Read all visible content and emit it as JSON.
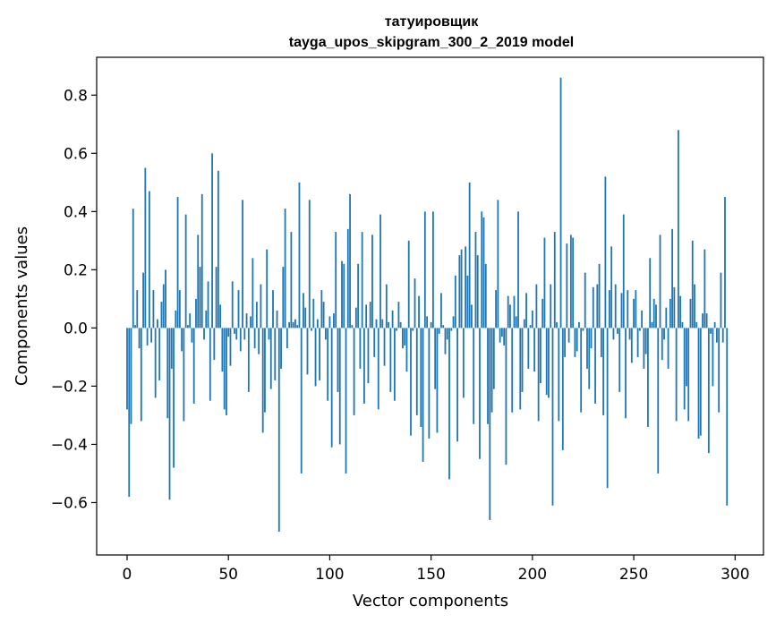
{
  "chart_data": {
    "type": "bar",
    "title": "татуировщик",
    "subtitle": "tayga_upos_skipgram_300_2_2019 model",
    "xlabel": "Vector components",
    "ylabel": "Components values",
    "xlim": [
      -15,
      314
    ],
    "ylim": [
      -0.78,
      0.93
    ],
    "xticks": [
      0,
      50,
      100,
      150,
      200,
      250,
      300
    ],
    "xtick_labels": [
      "0",
      "50",
      "100",
      "150",
      "200",
      "250",
      "300"
    ],
    "yticks": [
      -0.6,
      -0.4,
      -0.2,
      0.0,
      0.2,
      0.4,
      0.6,
      0.8
    ],
    "ytick_labels": [
      "−0.6",
      "−0.4",
      "−0.2",
      "0.0",
      "0.2",
      "0.4",
      "0.6",
      "0.8"
    ],
    "bar_color": "#1f77b4",
    "grid": false,
    "values": [
      -0.28,
      -0.58,
      -0.33,
      0.41,
      0.01,
      0.13,
      -0.07,
      -0.32,
      0.19,
      0.55,
      -0.06,
      0.47,
      -0.05,
      0.13,
      -0.24,
      0.03,
      -0.18,
      0.09,
      0.15,
      0.2,
      -0.31,
      -0.59,
      -0.14,
      -0.48,
      0.06,
      0.45,
      0.13,
      -0.08,
      -0.32,
      0.39,
      0.01,
      0.05,
      -0.05,
      -0.26,
      0.1,
      0.32,
      0.21,
      0.46,
      -0.04,
      0.06,
      0.16,
      -0.25,
      0.6,
      -0.11,
      0.21,
      0.54,
      0.08,
      -0.15,
      -0.28,
      -0.3,
      -0.03,
      -0.13,
      0.16,
      -0.02,
      -0.04,
      0.13,
      -0.08,
      0.44,
      -0.04,
      0.05,
      -0.22,
      0.04,
      0.24,
      -0.07,
      0.09,
      -0.09,
      0.15,
      -0.36,
      -0.29,
      0.27,
      -0.04,
      -0.21,
      0.13,
      -0.18,
      0.06,
      -0.7,
      -0.14,
      0.21,
      0.41,
      -0.07,
      0.02,
      0.33,
      0.02,
      0.03,
      0.01,
      0.5,
      -0.5,
      0.12,
      0.07,
      -0.16,
      0.44,
      -0.01,
      0.1,
      -0.2,
      0.03,
      -0.18,
      0.13,
      0.09,
      -0.04,
      -0.25,
      0.04,
      -0.41,
      0.05,
      0.33,
      -0.22,
      -0.4,
      0.23,
      0.22,
      -0.5,
      0.34,
      0.46,
      0.01,
      -0.3,
      0.07,
      0.22,
      -0.14,
      0.33,
      -0.26,
      0.08,
      -0.19,
      0.09,
      0.32,
      -0.1,
      0.03,
      -0.28,
      0.39,
      0.03,
      -0.13,
      0.15,
      0.02,
      -0.22,
      0.06,
      -0.25,
      -0.01,
      0.09,
      0.02,
      -0.07,
      -0.06,
      -0.15,
      0.3,
      -0.37,
      -0.01,
      0.17,
      -0.3,
      0.11,
      -0.34,
      -0.46,
      0.4,
      0.04,
      -0.38,
      0.02,
      0.4,
      -0.21,
      -0.36,
      -0.02,
      0.12,
      0.01,
      -0.09,
      -0.04,
      -0.52,
      -0.01,
      0.04,
      0.18,
      -0.39,
      0.25,
      0.27,
      -0.24,
      0.28,
      0.18,
      0.5,
      0.08,
      -0.33,
      0.33,
      0.25,
      -0.45,
      0.4,
      0.38,
      0.22,
      -0.33,
      -0.66,
      -0.29,
      -0.21,
      0.13,
      0.44,
      -0.05,
      -0.03,
      -0.06,
      -0.47,
      0.11,
      0.08,
      -0.29,
      0.11,
      0.04,
      0.4,
      -0.28,
      -0.22,
      0.03,
      0.12,
      -0.14,
      0.01,
      0.06,
      -0.15,
      0.15,
      -0.32,
      -0.19,
      0.1,
      0.31,
      -0.23,
      -0.24,
      0.15,
      -0.61,
      0.33,
      0.02,
      -0.32,
      0.86,
      -0.42,
      -0.1,
      0.29,
      -0.05,
      0.32,
      0.31,
      -0.1,
      -0.08,
      0.02,
      -0.29,
      -0.01,
      0.19,
      -0.14,
      -0.21,
      -0.07,
      0.14,
      -0.26,
      0.15,
      0.22,
      -0.1,
      -0.3,
      0.52,
      -0.55,
      0.13,
      0.28,
      -0.04,
      0.15,
      -0.02,
      -0.22,
      0.12,
      0.39,
      -0.31,
      0.13,
      -0.04,
      -0.12,
      0.1,
      0.13,
      -0.1,
      -0.01,
      0.06,
      -0.14,
      -0.09,
      -0.34,
      0.24,
      0.02,
      0.1,
      0.08,
      -0.5,
      0.32,
      -0.11,
      -0.04,
      0.07,
      -0.14,
      0.1,
      0.34,
      0.14,
      -0.32,
      0.68,
      0.11,
      0.02,
      -0.28,
      -0.2,
      -0.32,
      0.1,
      0.3,
      0.15,
      0.02,
      -0.38,
      -0.37,
      0.05,
      0.27,
      0.05,
      -0.43,
      -0.02,
      -0.2,
      0.02,
      -0.05,
      -0.29,
      0.19,
      -0.05,
      0.45,
      -0.61
    ]
  }
}
